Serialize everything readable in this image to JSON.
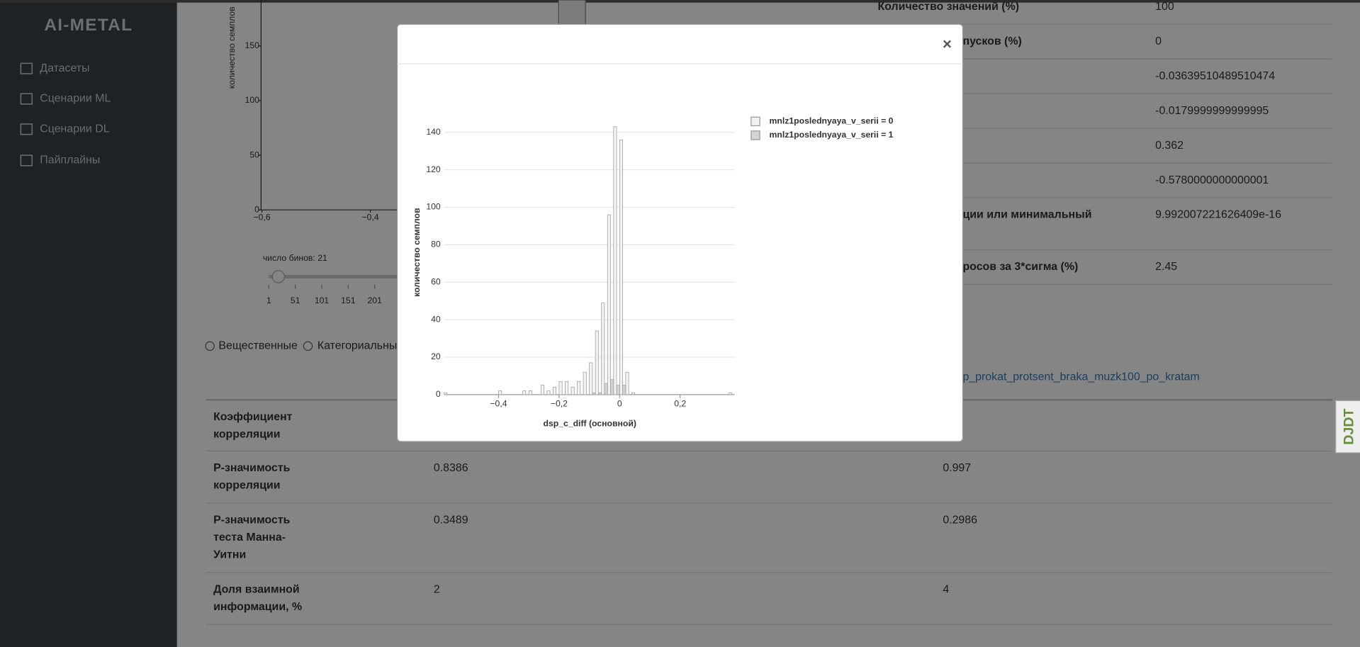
{
  "sidebar": {
    "logo": "AI-METAL",
    "menu": [
      "Датасеты",
      "Сценарии ML",
      "Сценарии DL",
      "Пайплайны"
    ]
  },
  "background_chart": {
    "y_label": "количество семплов",
    "yticks": [
      0,
      50,
      100,
      150
    ],
    "xticks": [
      {
        "value": -0.6,
        "label": "−0,6"
      },
      {
        "value": -0.4,
        "label": "−0,4"
      }
    ]
  },
  "bins_slider": {
    "label": "число бинов: 21",
    "ticks": [
      1,
      51,
      101,
      151,
      201
    ]
  },
  "stats": [
    {
      "label": "Количество значений (%)",
      "value": "100"
    },
    {
      "label": "пусков (%)",
      "value": "0"
    },
    {
      "value": "-0.03639510489510474"
    },
    {
      "value": "-0.0179999999999995"
    },
    {
      "value": "0.362"
    },
    {
      "value": "-0.5780000000000001"
    },
    {
      "label": "ции или минимальный",
      "value": "9.992007221626409e-16"
    },
    {
      "label": "росов за 3*сигма (%)",
      "value": "2.45"
    }
  ],
  "filters": [
    "Вещественные",
    "Категориальные"
  ],
  "target_link": "p_prokat_protsent_braka_muzk100_po_kratam",
  "correlation_table": {
    "rows": [
      {
        "label": [
          "Коэффициент",
          "корреляции"
        ]
      },
      {
        "label": [
          "Р-значимость",
          "корреляции"
        ],
        "values": [
          "0.8386",
          "0.997"
        ]
      },
      {
        "label": [
          "Р-значимость",
          "теста Манна-",
          "Уитни"
        ],
        "values": [
          "0.3489",
          "0.2986"
        ]
      },
      {
        "label": [
          "Доля взаимной",
          "информации, %"
        ],
        "values": [
          "2",
          "4"
        ]
      }
    ]
  },
  "modal": {
    "close": "×"
  },
  "chart_data": {
    "type": "histogram",
    "x_label": "dsp_c_diff (основной)",
    "y_label": "количество семплов",
    "bins": [
      -0.58,
      -0.56,
      -0.54,
      -0.52,
      -0.5,
      -0.48,
      -0.46,
      -0.44,
      -0.42,
      -0.4,
      -0.38,
      -0.36,
      -0.34,
      -0.32,
      -0.3,
      -0.28,
      -0.26,
      -0.24,
      -0.22,
      -0.2,
      -0.18,
      -0.16,
      -0.14,
      -0.12,
      -0.1,
      -0.08,
      -0.06,
      -0.04,
      -0.02,
      0,
      0.02,
      0.04,
      0.06,
      0.08,
      0.1,
      0.12,
      0.14,
      0.16,
      0.18,
      0.2,
      0.22,
      0.24,
      0.26,
      0.28,
      0.3,
      0.32,
      0.34,
      0.36,
      0.38
    ],
    "series": [
      {
        "name": "mnlz1poslednyaya_v_serii = 0",
        "color": "#f2f2f2",
        "values": [
          1,
          0,
          0,
          0,
          0,
          0,
          0,
          0,
          0,
          2,
          0,
          0,
          0,
          2,
          2,
          0,
          5,
          2,
          4,
          7,
          7,
          4,
          7,
          12,
          17,
          34,
          49,
          96,
          143,
          136,
          12,
          1,
          0,
          0,
          0,
          0,
          0,
          0,
          0,
          0,
          0,
          0,
          0,
          0,
          0,
          0,
          0,
          1
        ]
      },
      {
        "name": "mnlz1poslednyaya_v_serii = 1",
        "color": "#d4d4d4",
        "values": [
          0,
          0,
          0,
          0,
          0,
          0,
          0,
          0,
          0,
          0,
          0,
          0,
          0,
          0,
          0,
          0,
          0,
          0,
          0,
          0,
          0,
          0,
          0,
          0,
          1,
          1,
          6,
          8,
          5,
          5,
          0,
          0,
          0,
          0,
          0,
          0,
          0,
          0,
          0,
          0,
          0,
          0,
          0,
          0,
          0,
          0,
          0,
          0
        ]
      }
    ],
    "xlim": [
      -0.58,
      0.38
    ],
    "ylim": [
      0,
      150
    ],
    "xticks": [
      {
        "value": -0.4,
        "label": "−0,4"
      },
      {
        "value": -0.2,
        "label": "−0,2"
      },
      0,
      {
        "value": 0.2,
        "label": "0,2"
      }
    ],
    "yticks": [
      0,
      20,
      40,
      60,
      80,
      100,
      120,
      140
    ],
    "grid": true,
    "legend": "right"
  },
  "debug_toolbar": "DJDT"
}
